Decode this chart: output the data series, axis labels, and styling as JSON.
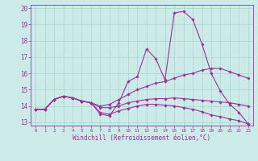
{
  "xlabel": "Windchill (Refroidissement éolien,°C)",
  "xlim": [
    -0.5,
    23.5
  ],
  "ylim": [
    12.8,
    20.2
  ],
  "yticks": [
    13,
    14,
    15,
    16,
    17,
    18,
    19,
    20
  ],
  "xticks": [
    0,
    1,
    2,
    3,
    4,
    5,
    6,
    7,
    8,
    9,
    10,
    11,
    12,
    13,
    14,
    15,
    16,
    17,
    18,
    19,
    20,
    21,
    22,
    23
  ],
  "bg_color": "#cceae8",
  "line_color": "#993399",
  "grid_color": "#aad4d0",
  "lines": [
    [
      13.8,
      13.8,
      14.4,
      14.6,
      14.5,
      14.3,
      14.2,
      13.5,
      13.4,
      14.2,
      15.5,
      15.8,
      17.5,
      16.9,
      15.6,
      19.7,
      19.8,
      19.3,
      17.8,
      16.0,
      14.9,
      14.1,
      13.6,
      12.9
    ],
    [
      13.8,
      13.8,
      14.4,
      14.6,
      14.5,
      14.3,
      14.2,
      14.0,
      14.1,
      14.4,
      14.7,
      15.0,
      15.2,
      15.4,
      15.5,
      15.7,
      15.9,
      16.0,
      16.2,
      16.3,
      16.3,
      16.1,
      15.9,
      15.7
    ],
    [
      13.8,
      13.8,
      14.4,
      14.6,
      14.5,
      14.3,
      14.2,
      13.9,
      13.9,
      14.0,
      14.2,
      14.3,
      14.4,
      14.45,
      14.45,
      14.5,
      14.45,
      14.4,
      14.35,
      14.3,
      14.25,
      14.2,
      14.1,
      14.0
    ],
    [
      13.8,
      13.8,
      14.4,
      14.6,
      14.5,
      14.3,
      14.2,
      13.6,
      13.5,
      13.7,
      13.85,
      14.0,
      14.1,
      14.1,
      14.05,
      14.0,
      13.9,
      13.8,
      13.65,
      13.45,
      13.35,
      13.2,
      13.1,
      12.9
    ]
  ]
}
